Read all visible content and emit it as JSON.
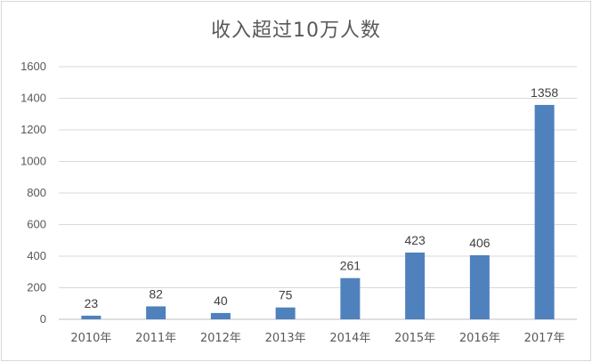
{
  "chart_data": {
    "type": "bar",
    "title": "收入超过10万人数",
    "categories": [
      "2010年",
      "2011年",
      "2012年",
      "2013年",
      "2014年",
      "2015年",
      "2016年",
      "2017年"
    ],
    "values": [
      23,
      82,
      40,
      75,
      261,
      423,
      406,
      1358
    ],
    "ylim": [
      0,
      1600
    ],
    "yticks": [
      0,
      200,
      400,
      600,
      800,
      1000,
      1200,
      1400,
      1600
    ],
    "grid": true,
    "data_labels": true,
    "bar_color": "#4f81bd"
  }
}
